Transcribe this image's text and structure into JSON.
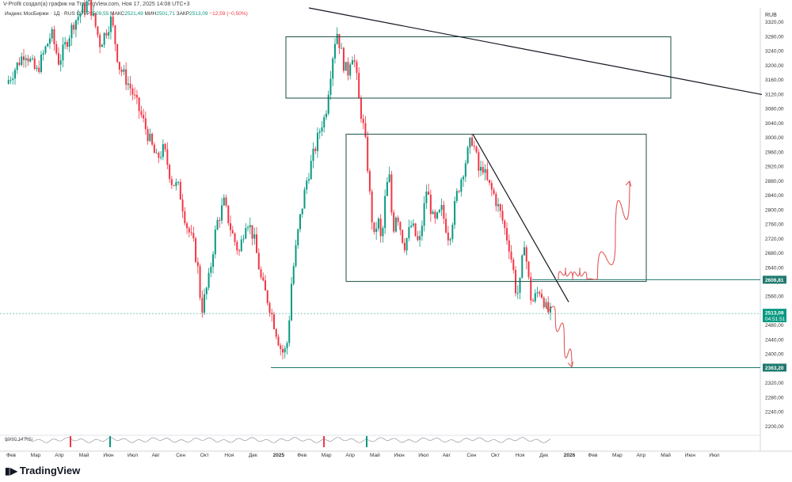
{
  "header": {
    "attribution": "V-Profit создал(а) график на TradingView.com, Ноя 17, 2025 14:08 UTC+3"
  },
  "legend": {
    "symbol": "Индекс МосБиржи · 1Д · RUS",
    "open_label": "ОТКР",
    "open": "2509,55",
    "high_label": "МАКС",
    "high": "2521,49",
    "low_label": "МИН",
    "low": "2501,71",
    "close_label": "ЗАКР",
    "close": "2513,09",
    "change": "−12,59 (−0,50%)"
  },
  "currency": "RUB",
  "indicator": {
    "label": "80/20 14 RSI"
  },
  "brand": {
    "logo_icon": "tradingview-logo-icon",
    "name": "TradingView"
  },
  "colors": {
    "up": "#089981",
    "down": "#f23645",
    "level": "#1f7a6e",
    "box": "#1b4d44",
    "trend": "#131722",
    "arrow": "#e05a5a"
  },
  "chart_data": {
    "type": "candlestick",
    "ylim": [
      2180,
      3360
    ],
    "y_ticks": [
      "3320,00",
      "3280,00",
      "3240,00",
      "3200,00",
      "3160,00",
      "3120,00",
      "3080,00",
      "3040,00",
      "3000,00",
      "2960,00",
      "2920,00",
      "2880,00",
      "2840,00",
      "2800,00",
      "2760,00",
      "2720,00",
      "2680,00",
      "2640,00",
      "2600,00",
      "2560,00",
      "2520,00",
      "2480,00",
      "2440,00",
      "2400,00",
      "2360,00",
      "2320,00",
      "2280,00",
      "2240,00",
      "2200,00"
    ],
    "x_ticks": [
      {
        "label": "Фев",
        "bold": false
      },
      {
        "label": "Мар",
        "bold": false
      },
      {
        "label": "Апр",
        "bold": false
      },
      {
        "label": "Май",
        "bold": false
      },
      {
        "label": "Июн",
        "bold": false
      },
      {
        "label": "Июл",
        "bold": false
      },
      {
        "label": "Авг",
        "bold": false
      },
      {
        "label": "Сен",
        "bold": false
      },
      {
        "label": "Окт",
        "bold": false
      },
      {
        "label": "Ноя",
        "bold": false
      },
      {
        "label": "Дек",
        "bold": false
      },
      {
        "label": "2025",
        "bold": true
      },
      {
        "label": "Фев",
        "bold": false
      },
      {
        "label": "Мар",
        "bold": false
      },
      {
        "label": "Апр",
        "bold": false
      },
      {
        "label": "Май",
        "bold": false
      },
      {
        "label": "Июн",
        "bold": false
      },
      {
        "label": "Июл",
        "bold": false
      },
      {
        "label": "Авг",
        "bold": false
      },
      {
        "label": "Сен",
        "bold": false
      },
      {
        "label": "Окт",
        "bold": false
      },
      {
        "label": "Ноя",
        "bold": false
      },
      {
        "label": "Дек",
        "bold": false
      },
      {
        "label": "2026",
        "bold": true
      },
      {
        "label": "Фев",
        "bold": false
      },
      {
        "label": "Мар",
        "bold": false
      },
      {
        "label": "Апр",
        "bold": false
      },
      {
        "label": "Май",
        "bold": false
      },
      {
        "label": "Июн",
        "bold": false
      },
      {
        "label": "Июл",
        "bold": false
      }
    ],
    "price_path": [
      [
        0,
        3150
      ],
      [
        5,
        3240
      ],
      [
        8,
        3180
      ],
      [
        12,
        3290
      ],
      [
        14,
        3210
      ],
      [
        18,
        3320
      ],
      [
        22,
        3380
      ],
      [
        25,
        3260
      ],
      [
        28,
        3330
      ],
      [
        30,
        3200
      ],
      [
        33,
        3140
      ],
      [
        36,
        3060
      ],
      [
        38,
        3000
      ],
      [
        40,
        2940
      ],
      [
        42,
        2970
      ],
      [
        44,
        2880
      ],
      [
        46,
        2860
      ],
      [
        48,
        2760
      ],
      [
        50,
        2700
      ],
      [
        51,
        2640
      ],
      [
        52,
        2520
      ],
      [
        54,
        2610
      ],
      [
        56,
        2760
      ],
      [
        58,
        2820
      ],
      [
        60,
        2740
      ],
      [
        62,
        2680
      ],
      [
        64,
        2780
      ],
      [
        66,
        2720
      ],
      [
        68,
        2600
      ],
      [
        70,
        2540
      ],
      [
        72,
        2460
      ],
      [
        73,
        2420
      ],
      [
        74,
        2400
      ],
      [
        75,
        2440
      ],
      [
        76,
        2600
      ],
      [
        78,
        2760
      ],
      [
        80,
        2880
      ],
      [
        82,
        2960
      ],
      [
        84,
        3040
      ],
      [
        85,
        3060
      ],
      [
        86,
        3150
      ],
      [
        87,
        3230
      ],
      [
        88,
        3300
      ],
      [
        89,
        3250
      ],
      [
        90,
        3200
      ],
      [
        91,
        3180
      ],
      [
        92,
        3240
      ],
      [
        93,
        3200
      ],
      [
        94,
        3100
      ],
      [
        95,
        3040
      ],
      [
        96,
        2960
      ],
      [
        97,
        2820
      ],
      [
        98,
        2720
      ],
      [
        99,
        2780
      ],
      [
        100,
        2700
      ],
      [
        101,
        2840
      ],
      [
        102,
        2900
      ],
      [
        103,
        2740
      ],
      [
        104,
        2800
      ],
      [
        106,
        2700
      ],
      [
        108,
        2760
      ],
      [
        110,
        2700
      ],
      [
        112,
        2860
      ],
      [
        114,
        2760
      ],
      [
        116,
        2800
      ],
      [
        118,
        2720
      ],
      [
        120,
        2840
      ],
      [
        122,
        2920
      ],
      [
        124,
        3000
      ],
      [
        125,
        2960
      ],
      [
        126,
        2900
      ],
      [
        127,
        2920
      ],
      [
        128,
        2880
      ],
      [
        130,
        2840
      ],
      [
        132,
        2780
      ],
      [
        134,
        2700
      ],
      [
        135,
        2640
      ],
      [
        136,
        2560
      ],
      [
        137,
        2600
      ],
      [
        138,
        2720
      ],
      [
        139,
        2620
      ],
      [
        140,
        2540
      ],
      [
        141,
        2560
      ],
      [
        142,
        2580
      ],
      [
        143,
        2560
      ],
      [
        144,
        2520
      ],
      [
        145,
        2513
      ]
    ],
    "price_path_x_range": [
      0,
      145
    ],
    "levels": [
      {
        "price": 2606.81,
        "label": "2606,81"
      },
      {
        "price": 2363.2,
        "label": "2363,20"
      }
    ],
    "current": {
      "price": 2513.09,
      "label": "2513,09",
      "timer": "04:51:51"
    },
    "boxes": [
      {
        "top": 3280,
        "bottom": 3110
      },
      {
        "top": 3010,
        "bottom": 2602
      }
    ],
    "trendlines": [
      {
        "from": [
          0,
          3360
        ],
        "to": [
          1,
          3120
        ]
      },
      {
        "from": [
          0,
          3010
        ],
        "to": [
          1,
          2545
        ]
      }
    ],
    "scenario_arrows": [
      {
        "name": "bullish-path",
        "points": [
          [
            0,
            2608
          ],
          [
            0.1,
            2640
          ],
          [
            0.2,
            2605
          ],
          [
            0.3,
            2640
          ],
          [
            0.4,
            2605
          ],
          [
            0.55,
            2612
          ],
          [
            0.8,
            2720
          ],
          [
            1,
            2880
          ]
        ]
      },
      {
        "name": "bearish-path",
        "points": [
          [
            0,
            2545
          ],
          [
            0.35,
            2510
          ],
          [
            0.7,
            2440
          ],
          [
            1,
            2365
          ]
        ]
      }
    ],
    "rsi_markers": [
      "red",
      "green",
      "red",
      "green"
    ]
  }
}
